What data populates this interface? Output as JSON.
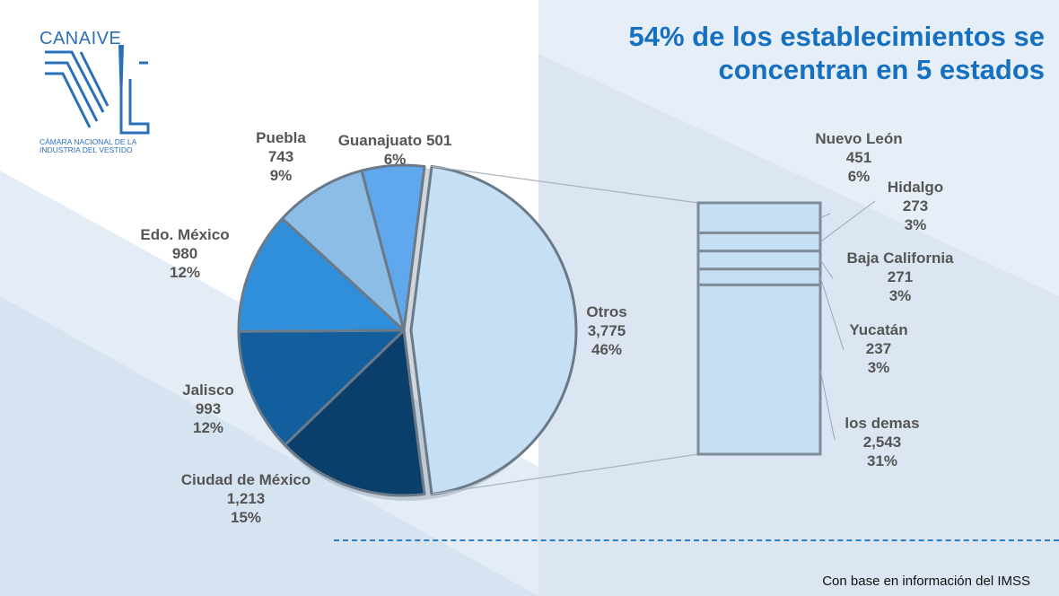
{
  "title_lines": [
    "54% de los establecimientos se",
    "concentran en 5 estados"
  ],
  "logo": {
    "name": "CANAIVE",
    "subtitle": "CÁMARA NACIONAL DE LA INDUSTRIA DEL VESTIDO"
  },
  "footnote": "Con base en información del IMSS",
  "colors": {
    "title": "#1670c0",
    "otros": "#c5dff5",
    "ciudad_de_mexico": "#0a3f6b",
    "jalisco": "#135f9e",
    "edo_mexico": "#2f8fdb",
    "puebla": "#8cbde6",
    "guanajuato": "#5fa8ee",
    "bar": "#c5dff5"
  },
  "chart_data": {
    "type": "pie",
    "unit": "establecimientos",
    "pie": [
      {
        "name": "Otros",
        "value": 3775,
        "value_label": "3,775",
        "pct_label": "46%"
      },
      {
        "name": "Ciudad de México",
        "value": 1213,
        "value_label": "1,213",
        "pct_label": "15%"
      },
      {
        "name": "Jalisco",
        "value": 993,
        "value_label": "993",
        "pct_label": "12%"
      },
      {
        "name": "Edo. México",
        "value": 980,
        "value_label": "980",
        "pct_label": "12%"
      },
      {
        "name": "Puebla",
        "value": 743,
        "value_label": "743",
        "pct_label": "9%"
      },
      {
        "name": "Guanajuato",
        "value": 501,
        "value_label": "501",
        "pct_label": "6%"
      }
    ],
    "breakdown_of": "Otros",
    "breakdown": [
      {
        "name": "Nuevo León",
        "value": 451,
        "value_label": "451",
        "pct_label": "6%"
      },
      {
        "name": "Hidalgo",
        "value": 273,
        "value_label": "273",
        "pct_label": "3%"
      },
      {
        "name": "Baja California",
        "value": 271,
        "value_label": "271",
        "pct_label": "3%"
      },
      {
        "name": "Yucatán",
        "value": 237,
        "value_label": "237",
        "pct_label": "3%"
      },
      {
        "name": "los demas",
        "value": 2543,
        "value_label": "2,543",
        "pct_label": "31%"
      }
    ]
  }
}
